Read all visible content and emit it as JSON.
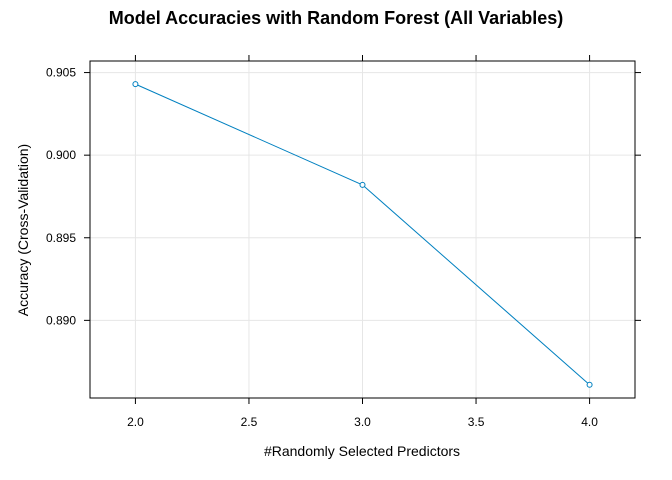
{
  "chart_data": {
    "type": "line",
    "title": "Model Accuracies with Random Forest (All Variables)",
    "xlabel": "#Randomly Selected Predictors",
    "ylabel": "Accuracy (Cross-Validation)",
    "x": [
      2,
      3,
      4
    ],
    "series": [
      {
        "values": [
          0.9043,
          0.8982,
          0.8861
        ],
        "color": "#0080C0"
      }
    ],
    "xlim": [
      1.8,
      4.2
    ],
    "ylim": [
      0.8853,
      0.9057
    ],
    "xticks": [
      2.0,
      2.5,
      3.0,
      3.5,
      4.0
    ],
    "xtick_labels": [
      "2.0",
      "2.5",
      "3.0",
      "3.5",
      "4.0"
    ],
    "yticks": [
      0.89,
      0.895,
      0.9,
      0.905
    ],
    "ytick_labels": [
      "0.890",
      "0.895",
      "0.900",
      "0.905"
    ],
    "grid": true,
    "grid_color": "#E6E6E6",
    "marker": "circle-open"
  }
}
